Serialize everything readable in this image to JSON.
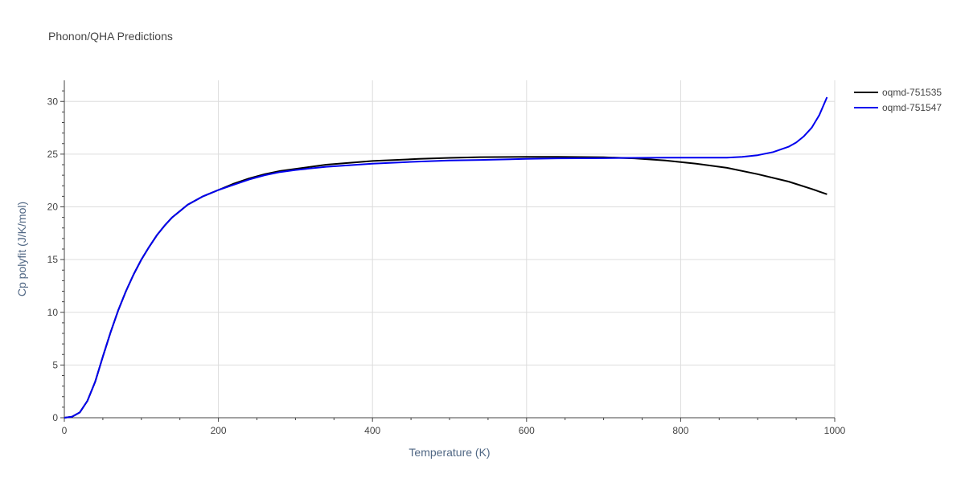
{
  "chart_data": {
    "type": "line",
    "title": "Phonon/QHA Predictions",
    "xlabel": "Temperature (K)",
    "ylabel": "Cp polyfit (J/K/mol)",
    "xlim": [
      0,
      1000
    ],
    "ylim": [
      0,
      32
    ],
    "xticks": [
      "0",
      "200",
      "400",
      "600",
      "800",
      "1000"
    ],
    "yticks": [
      "0",
      "5",
      "10",
      "15",
      "20",
      "25",
      "30"
    ],
    "grid": true,
    "legend_position": "top-right",
    "series": [
      {
        "name": "oqmd-751535",
        "color": "#000000",
        "x": [
          0,
          10,
          20,
          30,
          40,
          50,
          60,
          70,
          80,
          90,
          100,
          110,
          120,
          130,
          140,
          150,
          160,
          180,
          200,
          220,
          240,
          260,
          280,
          300,
          340,
          400,
          460,
          500,
          540,
          600,
          640,
          700,
          740,
          780,
          820,
          860,
          900,
          940,
          970,
          990
        ],
        "y": [
          0,
          0.1,
          0.5,
          1.6,
          3.4,
          5.8,
          8.1,
          10.2,
          12.0,
          13.6,
          15.0,
          16.2,
          17.3,
          18.2,
          19.0,
          19.6,
          20.2,
          21.0,
          21.6,
          22.2,
          22.7,
          23.1,
          23.4,
          23.6,
          24.0,
          24.35,
          24.55,
          24.65,
          24.72,
          24.75,
          24.75,
          24.7,
          24.6,
          24.4,
          24.1,
          23.7,
          23.1,
          22.4,
          21.7,
          21.2
        ]
      },
      {
        "name": "oqmd-751547",
        "color": "#0000ee",
        "x": [
          0,
          10,
          20,
          30,
          40,
          50,
          60,
          70,
          80,
          90,
          100,
          110,
          120,
          130,
          140,
          150,
          160,
          180,
          200,
          220,
          240,
          260,
          280,
          300,
          340,
          400,
          460,
          500,
          540,
          600,
          640,
          700,
          740,
          780,
          820,
          860,
          880,
          900,
          920,
          940,
          950,
          960,
          970,
          980,
          990
        ],
        "y": [
          0,
          0.1,
          0.5,
          1.6,
          3.4,
          5.8,
          8.1,
          10.2,
          12.0,
          13.6,
          15.0,
          16.2,
          17.3,
          18.2,
          19.0,
          19.6,
          20.2,
          21.0,
          21.6,
          22.1,
          22.6,
          23.0,
          23.3,
          23.5,
          23.8,
          24.1,
          24.3,
          24.4,
          24.45,
          24.55,
          24.6,
          24.62,
          24.65,
          24.66,
          24.66,
          24.67,
          24.75,
          24.9,
          25.2,
          25.7,
          26.1,
          26.7,
          27.5,
          28.7,
          30.4
        ]
      }
    ]
  }
}
